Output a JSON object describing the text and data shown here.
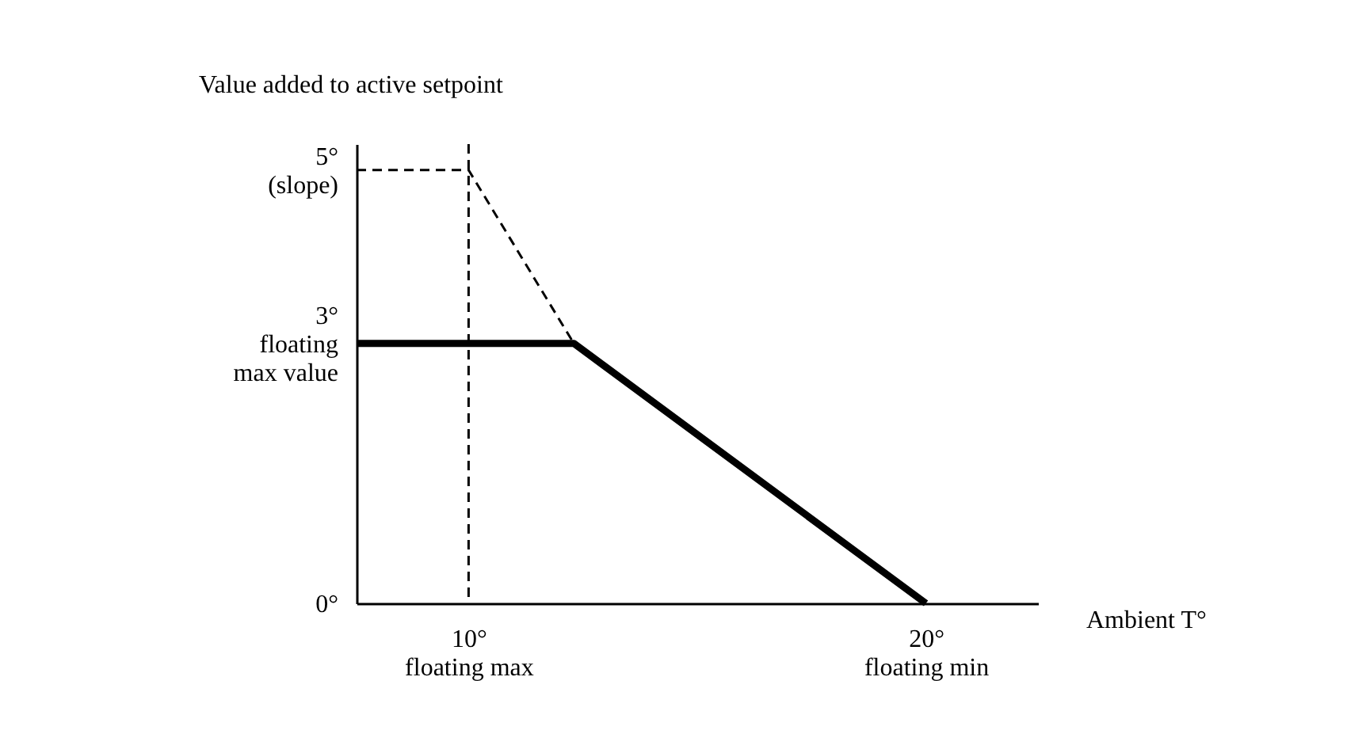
{
  "chart_data": {
    "type": "line",
    "xlabel": "Ambient T°",
    "ylabel": "Value added to active setpoint",
    "xlim": [
      7.55,
      22.45
    ],
    "ylim": [
      0,
      5.3
    ],
    "xticks": [
      {
        "value": 10,
        "label": "10°\nfloating max"
      },
      {
        "value": 20,
        "label": "20°\nfloating min"
      }
    ],
    "yticks": [
      {
        "value": 0,
        "label": "0°"
      },
      {
        "value": 3,
        "label": "3°\nfloating\nmax value"
      },
      {
        "value": 5,
        "label": "5°\n(slope)"
      }
    ],
    "series": [
      {
        "type": "line",
        "color": "#000000",
        "line_style": "solid",
        "x": [
          7.55,
          12.3,
          20
        ],
        "values": [
          3,
          3,
          0
        ]
      },
      {
        "type": "line",
        "color": "#000000",
        "line_style": "dashed",
        "x": [
          7.55,
          10,
          12.3
        ],
        "values": [
          5,
          5,
          3
        ]
      }
    ],
    "ref_lines": [
      {
        "axis": "x",
        "value": 10,
        "color": "#000000",
        "line_style": "dashed"
      }
    ],
    "grid": false,
    "legend": false,
    "marker": "none"
  }
}
